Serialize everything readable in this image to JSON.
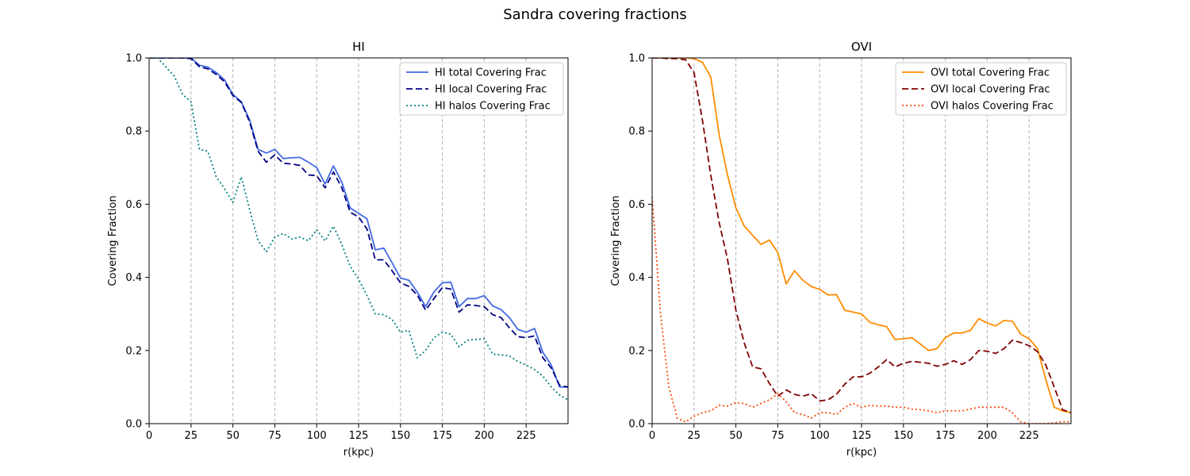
{
  "figure": {
    "title": "Sandra covering fractions"
  },
  "chart_data": [
    {
      "type": "line",
      "title": "HI",
      "xlabel": "r(kpc)",
      "ylabel": "Covering Fraction",
      "xlim": [
        0,
        250
      ],
      "ylim": [
        0,
        1.0
      ],
      "xticks": [
        0,
        25,
        50,
        75,
        100,
        125,
        150,
        175,
        200,
        225
      ],
      "yticks": [
        0.0,
        0.2,
        0.4,
        0.6,
        0.8,
        1.0
      ],
      "grid": "vertical-dashed",
      "legend": "top-right",
      "series": [
        {
          "name": "HI total Covering Frac",
          "color": "#4169e1",
          "style": "solid",
          "x": [
            0,
            5,
            10,
            15,
            20,
            25,
            30,
            35,
            40,
            45,
            50,
            55,
            60,
            65,
            70,
            75,
            80,
            85,
            90,
            95,
            100,
            105,
            110,
            115,
            120,
            125,
            130,
            135,
            140,
            145,
            150,
            155,
            160,
            165,
            170,
            175,
            180,
            185,
            190,
            195,
            200,
            205,
            210,
            215,
            220,
            225,
            230,
            235,
            240,
            245,
            250
          ],
          "y": [
            1.0,
            1.0,
            1.0,
            1.0,
            1.0,
            1.0,
            0.98,
            0.975,
            0.96,
            0.94,
            0.9,
            0.88,
            0.83,
            0.75,
            0.74,
            0.75,
            0.725,
            0.727,
            0.728,
            0.715,
            0.7,
            0.655,
            0.705,
            0.66,
            0.59,
            0.575,
            0.56,
            0.475,
            0.48,
            0.44,
            0.398,
            0.392,
            0.36,
            0.32,
            0.36,
            0.385,
            0.387,
            0.32,
            0.342,
            0.342,
            0.35,
            0.322,
            0.312,
            0.29,
            0.258,
            0.25,
            0.26,
            0.195,
            0.16,
            0.1,
            0.1
          ]
        },
        {
          "name": "HI local Covering Frac",
          "color": "#000080",
          "style": "dashed",
          "x": [
            0,
            5,
            10,
            15,
            20,
            25,
            30,
            35,
            40,
            45,
            50,
            55,
            60,
            65,
            70,
            75,
            80,
            85,
            90,
            95,
            100,
            105,
            110,
            115,
            120,
            125,
            130,
            135,
            140,
            145,
            150,
            155,
            160,
            165,
            170,
            175,
            180,
            185,
            190,
            195,
            200,
            205,
            210,
            215,
            220,
            225,
            230,
            235,
            240,
            245,
            250
          ],
          "y": [
            1.0,
            1.0,
            1.0,
            1.0,
            1.0,
            0.998,
            0.976,
            0.97,
            0.955,
            0.935,
            0.897,
            0.878,
            0.825,
            0.745,
            0.715,
            0.735,
            0.712,
            0.71,
            0.706,
            0.68,
            0.678,
            0.645,
            0.688,
            0.645,
            0.578,
            0.565,
            0.532,
            0.448,
            0.448,
            0.418,
            0.385,
            0.375,
            0.352,
            0.31,
            0.342,
            0.372,
            0.368,
            0.305,
            0.325,
            0.323,
            0.32,
            0.298,
            0.29,
            0.262,
            0.238,
            0.235,
            0.24,
            0.18,
            0.152,
            0.105,
            0.1
          ]
        },
        {
          "name": "HI halos Covering Frac",
          "color": "#008080",
          "style": "dotted",
          "x": [
            0,
            5,
            10,
            15,
            20,
            25,
            30,
            35,
            40,
            45,
            50,
            55,
            60,
            65,
            70,
            75,
            80,
            85,
            90,
            95,
            100,
            105,
            110,
            115,
            120,
            125,
            130,
            135,
            140,
            145,
            150,
            155,
            160,
            165,
            170,
            175,
            180,
            185,
            190,
            195,
            200,
            205,
            210,
            215,
            220,
            225,
            230,
            235,
            240,
            245,
            250
          ],
          "y": [
            1.0,
            1.0,
            0.975,
            0.95,
            0.9,
            0.88,
            0.75,
            0.745,
            0.675,
            0.642,
            0.605,
            0.675,
            0.585,
            0.5,
            0.47,
            0.51,
            0.52,
            0.505,
            0.51,
            0.5,
            0.53,
            0.5,
            0.54,
            0.49,
            0.43,
            0.395,
            0.35,
            0.3,
            0.298,
            0.285,
            0.25,
            0.255,
            0.18,
            0.2,
            0.235,
            0.25,
            0.245,
            0.21,
            0.228,
            0.23,
            0.232,
            0.19,
            0.188,
            0.185,
            0.17,
            0.16,
            0.148,
            0.13,
            0.1,
            0.078,
            0.065
          ]
        }
      ]
    },
    {
      "type": "line",
      "title": "OVI",
      "xlabel": "r(kpc)",
      "ylabel": "Covering Fraction",
      "xlim": [
        0,
        250
      ],
      "ylim": [
        0,
        1.0
      ],
      "xticks": [
        0,
        25,
        50,
        75,
        100,
        125,
        150,
        175,
        200,
        225
      ],
      "yticks": [
        0.0,
        0.2,
        0.4,
        0.6,
        0.8,
        1.0
      ],
      "grid": "vertical-dashed",
      "legend": "top-right",
      "series": [
        {
          "name": "OVI total Covering Frac",
          "color": "#ff8c00",
          "style": "solid",
          "x": [
            0,
            5,
            10,
            15,
            20,
            25,
            30,
            35,
            40,
            45,
            50,
            55,
            60,
            65,
            70,
            75,
            80,
            85,
            90,
            95,
            100,
            105,
            110,
            115,
            120,
            125,
            130,
            135,
            140,
            145,
            150,
            155,
            160,
            165,
            170,
            175,
            180,
            185,
            190,
            195,
            200,
            205,
            210,
            215,
            220,
            225,
            230,
            235,
            240,
            245,
            250
          ],
          "y": [
            1.0,
            1.0,
            1.0,
            1.0,
            1.0,
            0.998,
            0.988,
            0.948,
            0.79,
            0.68,
            0.59,
            0.54,
            0.515,
            0.49,
            0.502,
            0.468,
            0.382,
            0.418,
            0.392,
            0.375,
            0.367,
            0.352,
            0.353,
            0.31,
            0.305,
            0.3,
            0.277,
            0.27,
            0.265,
            0.23,
            0.232,
            0.235,
            0.218,
            0.2,
            0.205,
            0.235,
            0.248,
            0.248,
            0.255,
            0.287,
            0.275,
            0.267,
            0.282,
            0.28,
            0.245,
            0.232,
            0.205,
            0.12,
            0.045,
            0.035,
            0.03
          ]
        },
        {
          "name": "OVI local Covering Frac",
          "color": "#800000",
          "style": "dashed",
          "x": [
            0,
            5,
            10,
            15,
            20,
            25,
            30,
            35,
            40,
            45,
            50,
            55,
            60,
            65,
            70,
            75,
            80,
            85,
            90,
            95,
            100,
            105,
            110,
            115,
            120,
            125,
            130,
            135,
            140,
            145,
            150,
            155,
            160,
            165,
            170,
            175,
            180,
            185,
            190,
            195,
            200,
            205,
            210,
            215,
            220,
            225,
            230,
            235,
            240,
            245,
            250
          ],
          "y": [
            1.0,
            1.0,
            0.998,
            0.998,
            0.995,
            0.96,
            0.83,
            0.68,
            0.55,
            0.45,
            0.31,
            0.22,
            0.155,
            0.15,
            0.11,
            0.075,
            0.092,
            0.08,
            0.075,
            0.082,
            0.062,
            0.065,
            0.08,
            0.108,
            0.128,
            0.128,
            0.138,
            0.155,
            0.175,
            0.155,
            0.165,
            0.17,
            0.168,
            0.165,
            0.157,
            0.162,
            0.172,
            0.162,
            0.175,
            0.2,
            0.198,
            0.192,
            0.205,
            0.228,
            0.222,
            0.213,
            0.197,
            0.16,
            0.1,
            0.038,
            0.03
          ]
        },
        {
          "name": "OVI halos Covering Frac",
          "color": "#ff4500",
          "style": "dotted",
          "x": [
            0,
            5,
            10,
            15,
            20,
            25,
            30,
            35,
            40,
            45,
            50,
            55,
            60,
            65,
            70,
            75,
            80,
            85,
            90,
            95,
            100,
            105,
            110,
            115,
            120,
            125,
            130,
            135,
            140,
            145,
            150,
            155,
            160,
            165,
            170,
            175,
            180,
            185,
            190,
            195,
            200,
            205,
            210,
            215,
            220,
            225,
            230,
            235,
            240,
            245,
            250
          ],
          "y": [
            0.62,
            0.3,
            0.1,
            0.015,
            0.005,
            0.02,
            0.03,
            0.035,
            0.05,
            0.048,
            0.058,
            0.055,
            0.045,
            0.055,
            0.065,
            0.082,
            0.06,
            0.03,
            0.025,
            0.015,
            0.03,
            0.03,
            0.025,
            0.045,
            0.055,
            0.045,
            0.05,
            0.048,
            0.048,
            0.045,
            0.045,
            0.04,
            0.038,
            0.035,
            0.03,
            0.035,
            0.035,
            0.035,
            0.04,
            0.045,
            0.045,
            0.045,
            0.045,
            0.03,
            0.005,
            0.0,
            0.0,
            0.0,
            0.002,
            0.005,
            0.005
          ]
        }
      ]
    }
  ]
}
